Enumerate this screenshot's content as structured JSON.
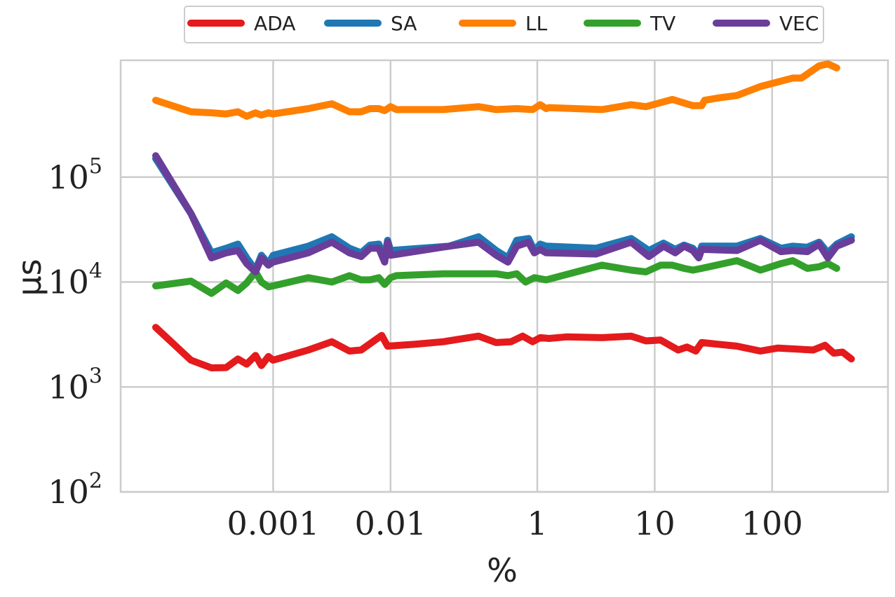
{
  "chart_data": {
    "type": "line",
    "xlabel": "%",
    "ylabel": "µs",
    "y_scale": "log",
    "ylim": [
      100,
      1300000
    ],
    "y_ticks": [
      {
        "value": 100,
        "base": "10",
        "exp": "2"
      },
      {
        "value": 1000,
        "base": "10",
        "exp": "3"
      },
      {
        "value": 10000,
        "base": "10",
        "exp": "4"
      },
      {
        "value": 100000,
        "base": "10",
        "exp": "5"
      }
    ],
    "x_ticks": [
      "0.001",
      "0.01",
      "1",
      "10",
      "100"
    ],
    "grid": true,
    "legend_position": "top-center",
    "series": [
      {
        "name": "ADA",
        "color": "#e41a1c",
        "values": [
          [
            0,
            3700
          ],
          [
            6,
            1800
          ],
          [
            9.5,
            1520
          ],
          [
            12,
            1530
          ],
          [
            14,
            1850
          ],
          [
            15.5,
            1650
          ],
          [
            17,
            2000
          ],
          [
            18,
            1600
          ],
          [
            19.2,
            1950
          ],
          [
            20,
            1800
          ],
          [
            26,
            2250
          ],
          [
            30,
            2700
          ],
          [
            33,
            2200
          ],
          [
            35,
            2250
          ],
          [
            38.5,
            3100
          ],
          [
            39.5,
            2450
          ],
          [
            44,
            2550
          ],
          [
            49,
            2700
          ],
          [
            55,
            3050
          ],
          [
            58,
            2650
          ],
          [
            60.5,
            2700
          ],
          [
            62.5,
            3050
          ],
          [
            64.2,
            2700
          ],
          [
            65.5,
            2950
          ],
          [
            67,
            2900
          ],
          [
            70,
            3000
          ],
          [
            76,
            2950
          ],
          [
            81,
            3050
          ],
          [
            83.5,
            2750
          ],
          [
            86,
            2800
          ],
          [
            89,
            2250
          ],
          [
            90.5,
            2400
          ],
          [
            92,
            2200
          ],
          [
            93,
            2650
          ],
          [
            99,
            2450
          ],
          [
            103,
            2200
          ],
          [
            106,
            2350
          ],
          [
            112,
            2250
          ],
          [
            114,
            2500
          ],
          [
            115.5,
            2100
          ],
          [
            117,
            2150
          ],
          [
            118.5,
            1850
          ]
        ]
      },
      {
        "name": "SA",
        "color": "#1f78b4",
        "values": [
          [
            0,
            150000
          ],
          [
            6,
            45000
          ],
          [
            9.5,
            19000
          ],
          [
            12,
            21000
          ],
          [
            14,
            23000
          ],
          [
            15.5,
            17000
          ],
          [
            17,
            13000
          ],
          [
            18,
            18000
          ],
          [
            19.2,
            15000
          ],
          [
            20,
            18000
          ],
          [
            26,
            22000
          ],
          [
            30,
            27000
          ],
          [
            33,
            21000
          ],
          [
            35,
            19000
          ],
          [
            36.5,
            22500
          ],
          [
            38,
            23000
          ],
          [
            39,
            17000
          ],
          [
            39.5,
            25000
          ],
          [
            40,
            20000
          ],
          [
            50,
            22000
          ],
          [
            55,
            27000
          ],
          [
            58,
            20000
          ],
          [
            60,
            17000
          ],
          [
            61.5,
            25000
          ],
          [
            63.5,
            26000
          ],
          [
            64.5,
            20000
          ],
          [
            65.5,
            23000
          ],
          [
            66.5,
            22000
          ],
          [
            75,
            21000
          ],
          [
            81,
            26000
          ],
          [
            84,
            20000
          ],
          [
            86.5,
            23500
          ],
          [
            88.5,
            20500
          ],
          [
            90,
            22500
          ],
          [
            91.5,
            21000
          ],
          [
            92.5,
            18000
          ],
          [
            93,
            22000
          ],
          [
            99,
            22000
          ],
          [
            103,
            26000
          ],
          [
            106.5,
            21000
          ],
          [
            108.5,
            22000
          ],
          [
            111,
            21500
          ],
          [
            113,
            24000
          ],
          [
            114.5,
            19000
          ],
          [
            116,
            23000
          ],
          [
            118.5,
            27000
          ]
        ]
      },
      {
        "name": "LL",
        "color": "#ff7f00",
        "values": [
          [
            0,
            540000
          ],
          [
            6,
            420000
          ],
          [
            9.5,
            410000
          ],
          [
            12,
            400000
          ],
          [
            14,
            420000
          ],
          [
            15.5,
            380000
          ],
          [
            17,
            410000
          ],
          [
            18,
            390000
          ],
          [
            19.2,
            410000
          ],
          [
            20,
            400000
          ],
          [
            26,
            450000
          ],
          [
            30,
            500000
          ],
          [
            33,
            420000
          ],
          [
            35,
            420000
          ],
          [
            36.5,
            450000
          ],
          [
            38,
            450000
          ],
          [
            39,
            430000
          ],
          [
            40,
            470000
          ],
          [
            41,
            440000
          ],
          [
            49,
            440000
          ],
          [
            55,
            470000
          ],
          [
            58,
            440000
          ],
          [
            61.5,
            450000
          ],
          [
            64.2,
            440000
          ],
          [
            65.5,
            490000
          ],
          [
            66.5,
            450000
          ],
          [
            67,
            460000
          ],
          [
            76,
            440000
          ],
          [
            81,
            490000
          ],
          [
            83.5,
            470000
          ],
          [
            88,
            550000
          ],
          [
            91.5,
            480000
          ],
          [
            93,
            480000
          ],
          [
            93.5,
            540000
          ],
          [
            96,
            570000
          ],
          [
            99,
            600000
          ],
          [
            103,
            730000
          ],
          [
            108.5,
            880000
          ],
          [
            110,
            880000
          ],
          [
            113,
            1150000
          ],
          [
            114.5,
            1200000
          ],
          [
            116,
            1100000
          ]
        ]
      },
      {
        "name": "TV",
        "color": "#33a02c",
        "values": [
          [
            0,
            9200
          ],
          [
            6,
            10200
          ],
          [
            9.5,
            7800
          ],
          [
            12,
            9800
          ],
          [
            14,
            8300
          ],
          [
            15.5,
            9800
          ],
          [
            17,
            12500
          ],
          [
            18,
            10000
          ],
          [
            19.2,
            9000
          ],
          [
            20,
            9200
          ],
          [
            26,
            11000
          ],
          [
            30,
            10000
          ],
          [
            33,
            11500
          ],
          [
            35,
            10500
          ],
          [
            36.5,
            10500
          ],
          [
            38,
            11000
          ],
          [
            39,
            9500
          ],
          [
            40,
            11000
          ],
          [
            41,
            11500
          ],
          [
            49,
            12000
          ],
          [
            55,
            12000
          ],
          [
            58,
            12000
          ],
          [
            60,
            11500
          ],
          [
            61.5,
            12000
          ],
          [
            63,
            10000
          ],
          [
            64.5,
            11000
          ],
          [
            66.5,
            10500
          ],
          [
            76,
            14500
          ],
          [
            81,
            13000
          ],
          [
            83.5,
            12500
          ],
          [
            86,
            14500
          ],
          [
            88,
            14500
          ],
          [
            90,
            13500
          ],
          [
            91.5,
            13000
          ],
          [
            93,
            13500
          ],
          [
            99,
            16000
          ],
          [
            103,
            13000
          ],
          [
            106.5,
            15000
          ],
          [
            108.5,
            16000
          ],
          [
            111,
            13500
          ],
          [
            113,
            14000
          ],
          [
            114.5,
            15000
          ],
          [
            116,
            13500
          ]
        ]
      },
      {
        "name": "VEC",
        "color": "#6a3d9a",
        "values": [
          [
            0,
            160000
          ],
          [
            6,
            45000
          ],
          [
            9.5,
            17000
          ],
          [
            12,
            19000
          ],
          [
            14,
            20000
          ],
          [
            15.5,
            15000
          ],
          [
            17,
            12500
          ],
          [
            18,
            17000
          ],
          [
            19.2,
            14500
          ],
          [
            20,
            15500
          ],
          [
            26,
            19000
          ],
          [
            30,
            24000
          ],
          [
            33,
            19000
          ],
          [
            35,
            17500
          ],
          [
            36.5,
            21000
          ],
          [
            38,
            21000
          ],
          [
            39,
            15500
          ],
          [
            39.5,
            24000
          ],
          [
            40,
            18000
          ],
          [
            50,
            22000
          ],
          [
            55,
            24000
          ],
          [
            58,
            18000
          ],
          [
            60,
            15500
          ],
          [
            61.5,
            22000
          ],
          [
            63.5,
            24000
          ],
          [
            64.5,
            19000
          ],
          [
            65.5,
            20500
          ],
          [
            66.5,
            19000
          ],
          [
            75,
            18500
          ],
          [
            81,
            24000
          ],
          [
            84,
            17500
          ],
          [
            86.5,
            22000
          ],
          [
            88.5,
            19000
          ],
          [
            90,
            22000
          ],
          [
            91.5,
            20000
          ],
          [
            92.5,
            17000
          ],
          [
            93,
            20500
          ],
          [
            99,
            20000
          ],
          [
            103,
            25000
          ],
          [
            106.5,
            19500
          ],
          [
            108.5,
            20000
          ],
          [
            111,
            19500
          ],
          [
            113,
            23000
          ],
          [
            114.5,
            17000
          ],
          [
            116,
            22000
          ],
          [
            118.5,
            25000
          ]
        ]
      }
    ]
  }
}
